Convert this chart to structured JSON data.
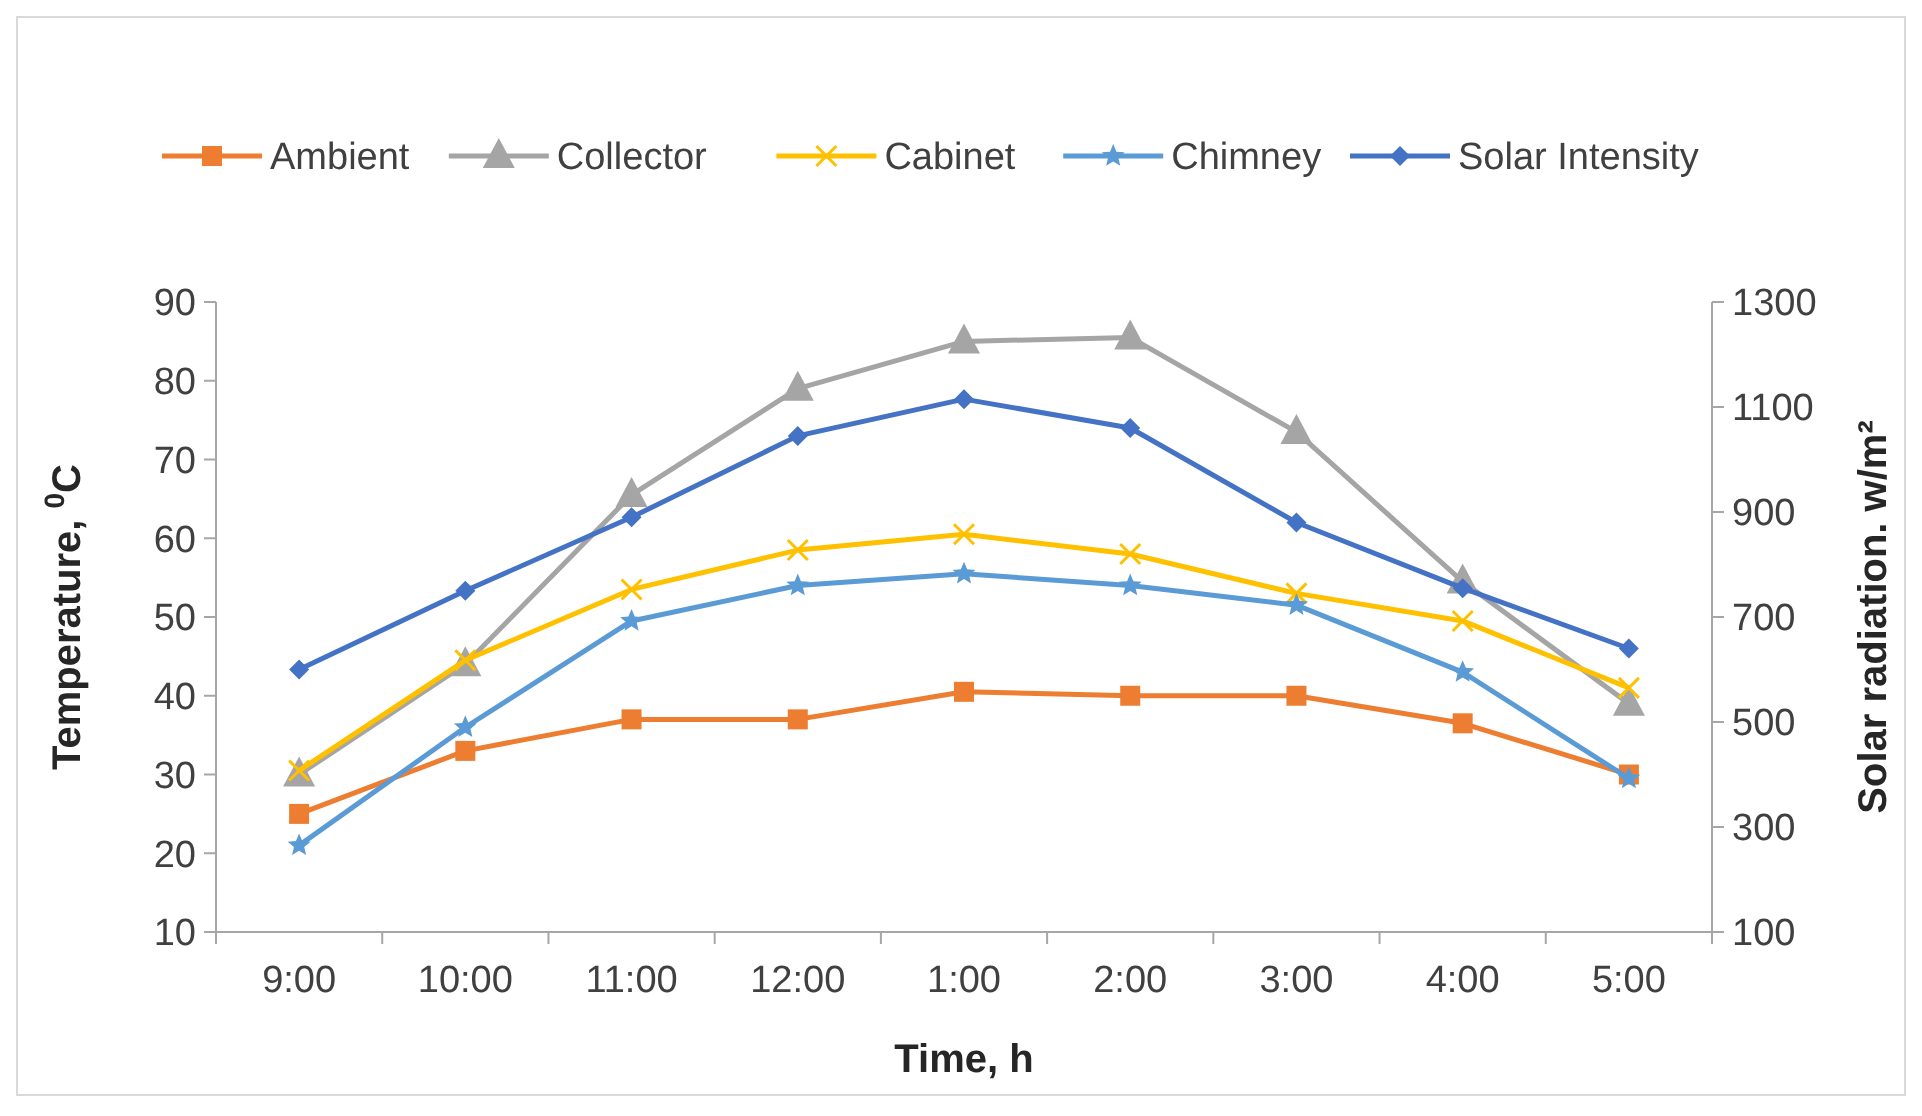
{
  "chart_data": {
    "type": "line",
    "xlabel": "Time, h",
    "ylabel": "Temperature, $^{0}$C",
    "y2label": "Solar radiation. w/m²",
    "categories": [
      "9:00",
      "10:00",
      "11:00",
      "12:00",
      "1:00",
      "2:00",
      "3:00",
      "4:00",
      "5:00"
    ],
    "ylim": [
      10,
      90
    ],
    "yticks": [
      10,
      20,
      30,
      40,
      50,
      60,
      70,
      80,
      90
    ],
    "y2lim": [
      100,
      1300
    ],
    "y2ticks": [
      100,
      300,
      500,
      700,
      900,
      1100,
      1300
    ],
    "grid": false,
    "legend": "top",
    "line_style": "solid",
    "series": [
      {
        "name": "Ambient",
        "color": "#ed7d31",
        "marker": "square",
        "values": [
          25,
          33,
          37,
          37,
          40.5,
          40,
          40,
          36.5,
          30
        ]
      },
      {
        "name": "Collector",
        "color": "#a5a5a5",
        "marker": "triangle",
        "values": [
          30,
          44,
          65.5,
          79,
          85,
          85.5,
          73.5,
          54.5,
          39
        ]
      },
      {
        "name": "Cabinet",
        "color": "#ffc000",
        "marker": "cross",
        "values": [
          30.5,
          44.5,
          53.5,
          58.5,
          60.5,
          58,
          53,
          49.5,
          41
        ]
      },
      {
        "name": "Chimney",
        "color": "#5b9bd5",
        "marker": "star",
        "values": [
          21,
          36,
          49.5,
          54,
          55.5,
          54,
          51.5,
          43,
          29.5
        ]
      },
      {
        "name": "Solar Intensity",
        "color": "#4472c4",
        "marker": "diamond",
        "axis": "y2",
        "values": [
          600,
          750,
          890,
          1045,
          1115,
          1060,
          880,
          755,
          640
        ]
      }
    ]
  }
}
